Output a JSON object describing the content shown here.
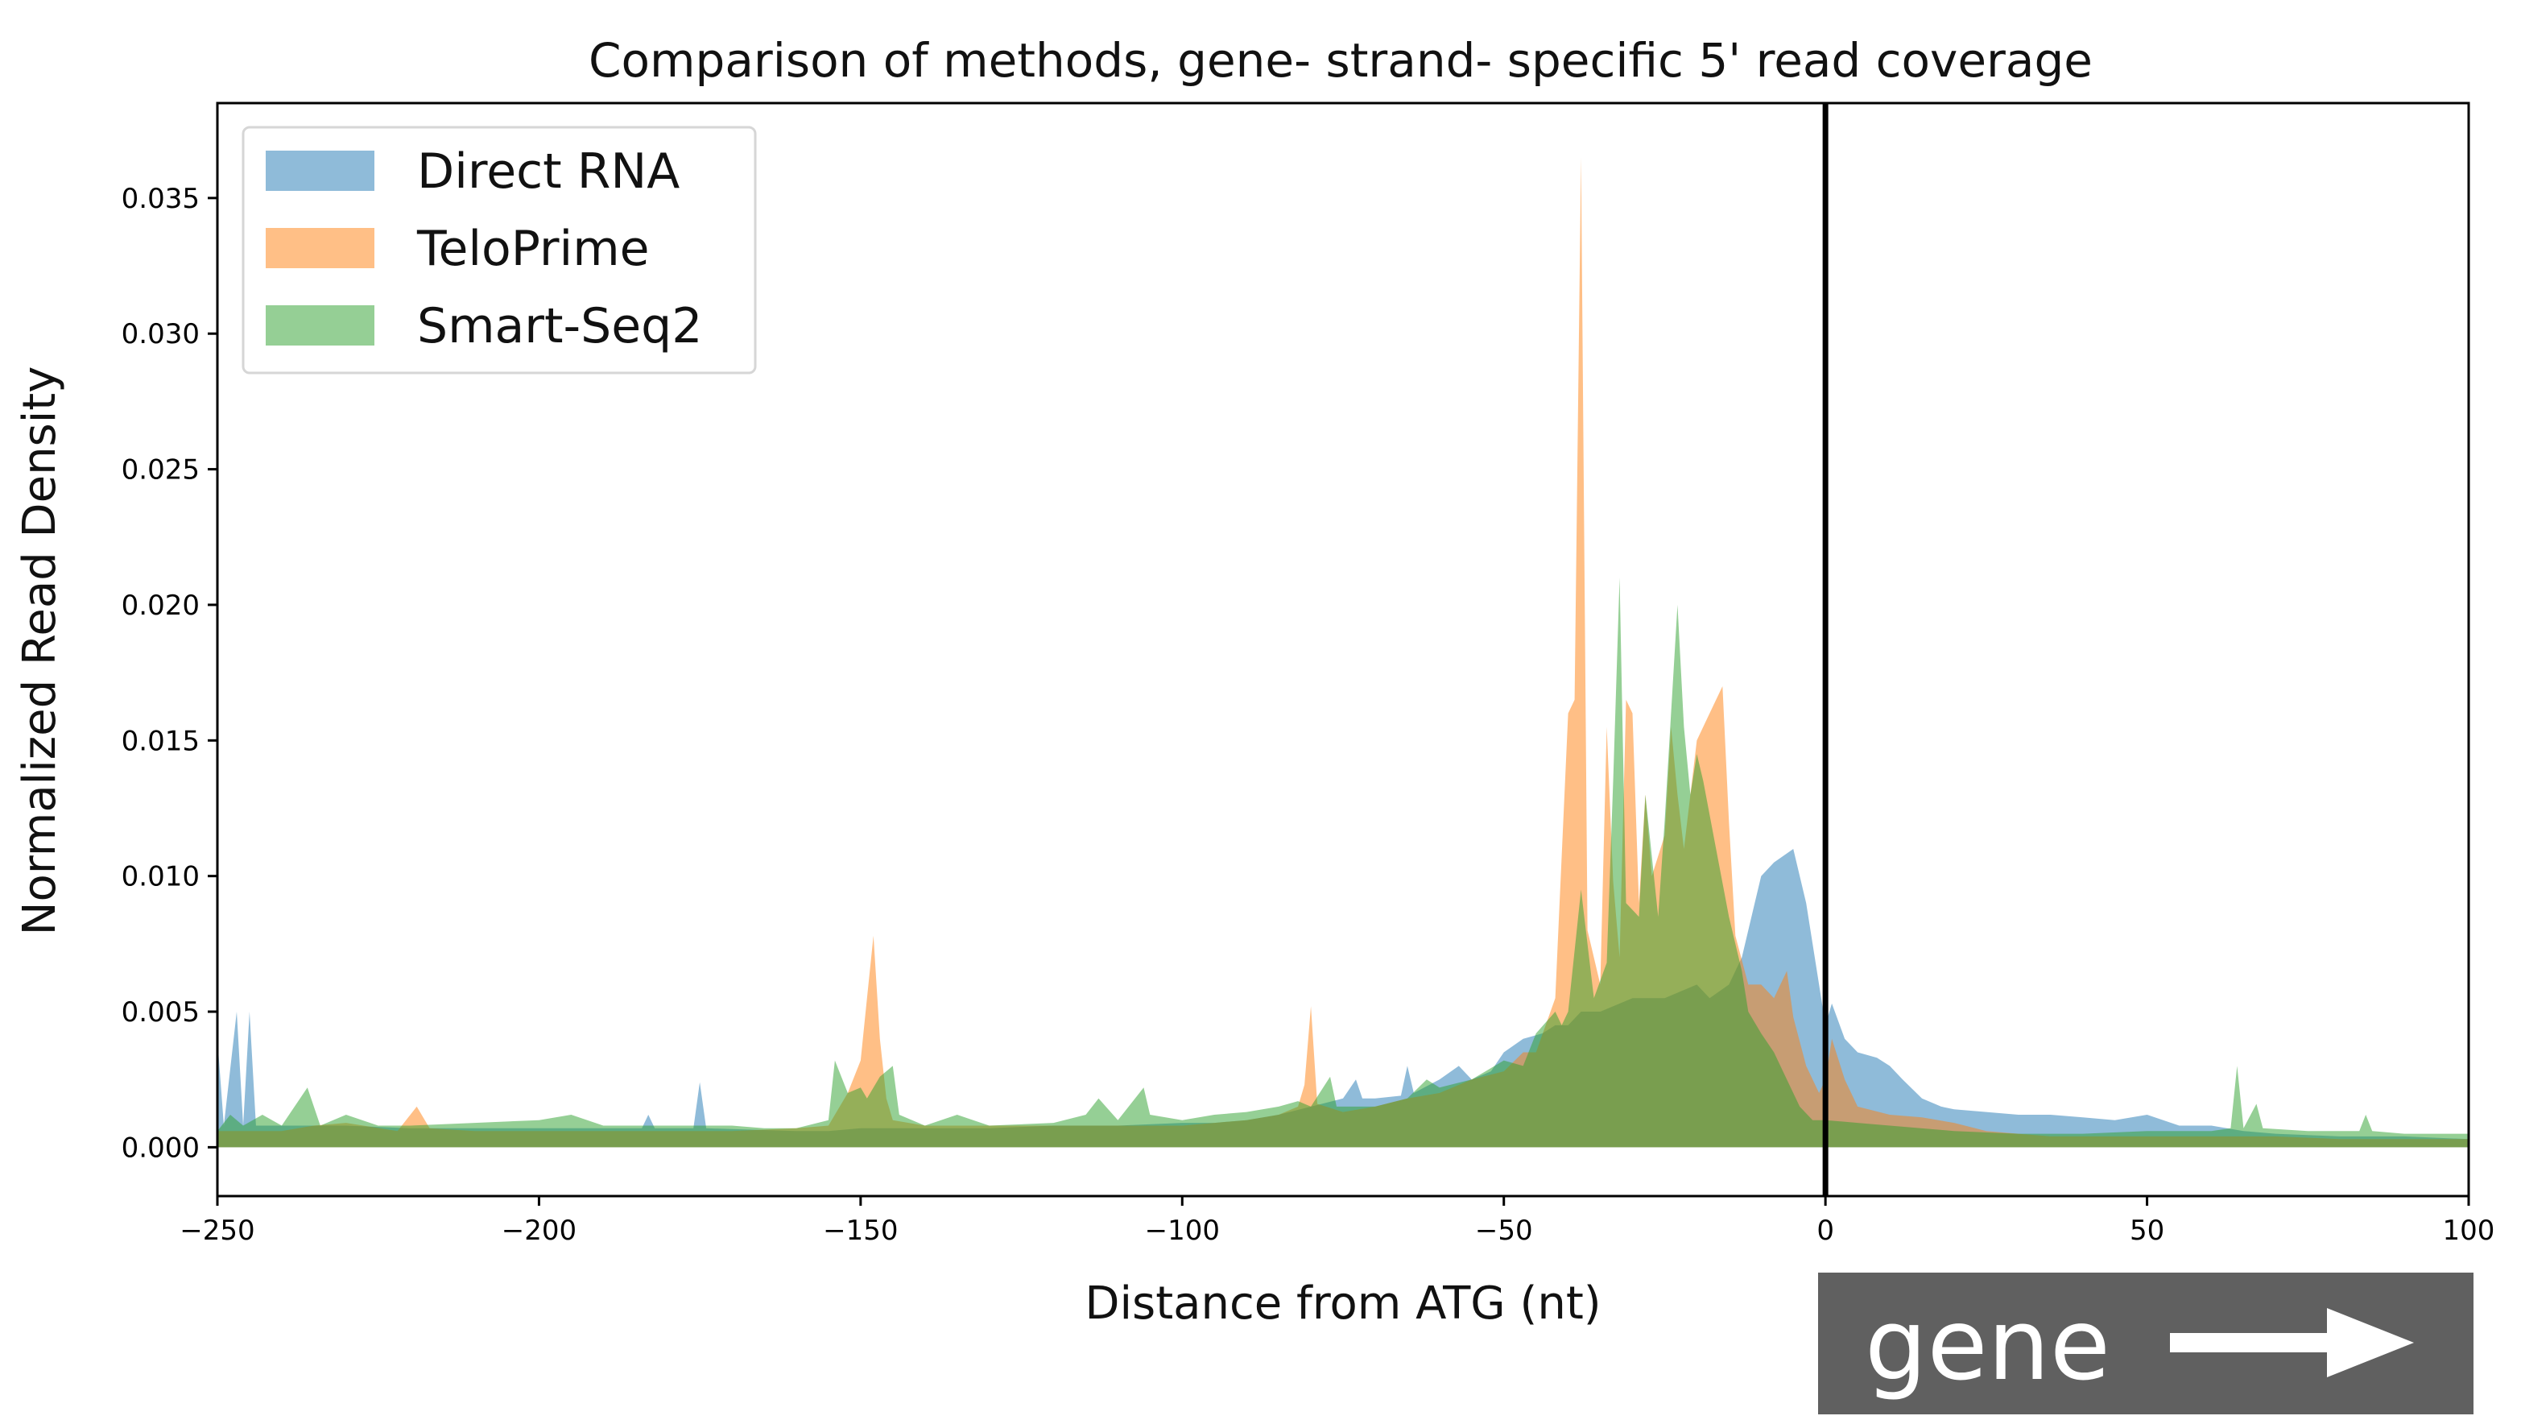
{
  "chart_data": {
    "type": "area",
    "title": "Comparison of methods, gene- strand- specific 5' read coverage",
    "xlabel": "Distance from ATG (nt)",
    "ylabel": "Normalized Read Density",
    "xlim": [
      -250,
      100
    ],
    "ylim": [
      -0.0018,
      0.0385
    ],
    "x_ticks": [
      -250,
      -200,
      -150,
      -100,
      -50,
      0,
      50,
      100
    ],
    "x_tick_labels": [
      "−250",
      "−200",
      "−150",
      "−100",
      "−50",
      "0",
      "50",
      "100"
    ],
    "y_ticks": [
      0.0,
      0.005,
      0.01,
      0.015,
      0.02,
      0.025,
      0.03,
      0.035
    ],
    "y_tick_labels": [
      "0.000",
      "0.005",
      "0.010",
      "0.015",
      "0.020",
      "0.025",
      "0.030",
      "0.035"
    ],
    "grid": false,
    "legend_position": "top-left",
    "vertical_line_x": 0,
    "series": [
      {
        "name": "Direct RNA",
        "color": "#1f77b4",
        "points": [
          [
            -250,
            0.004
          ],
          [
            -249,
            0.0008
          ],
          [
            -247,
            0.005
          ],
          [
            -246,
            0.0008
          ],
          [
            -245,
            0.005
          ],
          [
            -244,
            0.0008
          ],
          [
            -240,
            0.0008
          ],
          [
            -230,
            0.0008
          ],
          [
            -220,
            0.0007
          ],
          [
            -210,
            0.0007
          ],
          [
            -200,
            0.0007
          ],
          [
            -190,
            0.0007
          ],
          [
            -184,
            0.0007
          ],
          [
            -183,
            0.0012
          ],
          [
            -182,
            0.0007
          ],
          [
            -176,
            0.0007
          ],
          [
            -175,
            0.0024
          ],
          [
            -174,
            0.0007
          ],
          [
            -160,
            0.0006
          ],
          [
            -155,
            0.0006
          ],
          [
            -150,
            0.0007
          ],
          [
            -140,
            0.0007
          ],
          [
            -130,
            0.0007
          ],
          [
            -120,
            0.0008
          ],
          [
            -110,
            0.0008
          ],
          [
            -100,
            0.0009
          ],
          [
            -95,
            0.0009
          ],
          [
            -90,
            0.001
          ],
          [
            -85,
            0.0012
          ],
          [
            -80,
            0.0015
          ],
          [
            -75,
            0.0018
          ],
          [
            -73,
            0.0025
          ],
          [
            -72,
            0.0018
          ],
          [
            -70,
            0.0018
          ],
          [
            -66,
            0.0019
          ],
          [
            -65,
            0.003
          ],
          [
            -64,
            0.002
          ],
          [
            -60,
            0.0025
          ],
          [
            -57,
            0.003
          ],
          [
            -55,
            0.0025
          ],
          [
            -52,
            0.0028
          ],
          [
            -50,
            0.0035
          ],
          [
            -47,
            0.004
          ],
          [
            -44,
            0.0042
          ],
          [
            -42,
            0.0045
          ],
          [
            -40,
            0.0045
          ],
          [
            -38,
            0.005
          ],
          [
            -35,
            0.005
          ],
          [
            -30,
            0.0055
          ],
          [
            -25,
            0.0055
          ],
          [
            -20,
            0.006
          ],
          [
            -18,
            0.0055
          ],
          [
            -15,
            0.006
          ],
          [
            -13,
            0.007
          ],
          [
            -11,
            0.009
          ],
          [
            -10,
            0.01
          ],
          [
            -8,
            0.0105
          ],
          [
            -5,
            0.011
          ],
          [
            -3,
            0.009
          ],
          [
            -1,
            0.006
          ],
          [
            0,
            0.0045
          ],
          [
            1,
            0.0053
          ],
          [
            3,
            0.004
          ],
          [
            5,
            0.0035
          ],
          [
            8,
            0.0033
          ],
          [
            10,
            0.003
          ],
          [
            12,
            0.0025
          ],
          [
            15,
            0.0018
          ],
          [
            18,
            0.0015
          ],
          [
            20,
            0.0014
          ],
          [
            25,
            0.0013
          ],
          [
            30,
            0.0012
          ],
          [
            35,
            0.0012
          ],
          [
            40,
            0.0011
          ],
          [
            45,
            0.001
          ],
          [
            50,
            0.0012
          ],
          [
            55,
            0.0008
          ],
          [
            60,
            0.0008
          ],
          [
            65,
            0.0006
          ],
          [
            70,
            0.0005
          ],
          [
            80,
            0.0004
          ],
          [
            90,
            0.0004
          ],
          [
            100,
            0.0003
          ]
        ]
      },
      {
        "name": "TeloPrime",
        "color": "#ff7f0e",
        "points": [
          [
            -250,
            0.0006
          ],
          [
            -240,
            0.0006
          ],
          [
            -235,
            0.0008
          ],
          [
            -230,
            0.0009
          ],
          [
            -222,
            0.0006
          ],
          [
            -219,
            0.0015
          ],
          [
            -217,
            0.0007
          ],
          [
            -210,
            0.0006
          ],
          [
            -200,
            0.0006
          ],
          [
            -190,
            0.0006
          ],
          [
            -180,
            0.0006
          ],
          [
            -170,
            0.0006
          ],
          [
            -160,
            0.0007
          ],
          [
            -155,
            0.0008
          ],
          [
            -152,
            0.002
          ],
          [
            -150,
            0.0032
          ],
          [
            -149,
            0.0055
          ],
          [
            -148,
            0.0078
          ],
          [
            -147,
            0.004
          ],
          [
            -146,
            0.0018
          ],
          [
            -145,
            0.001
          ],
          [
            -140,
            0.0008
          ],
          [
            -130,
            0.0008
          ],
          [
            -120,
            0.0008
          ],
          [
            -110,
            0.0008
          ],
          [
            -100,
            0.0008
          ],
          [
            -95,
            0.0009
          ],
          [
            -90,
            0.001
          ],
          [
            -85,
            0.0012
          ],
          [
            -82,
            0.0015
          ],
          [
            -81,
            0.0023
          ],
          [
            -80,
            0.0052
          ],
          [
            -79,
            0.0016
          ],
          [
            -75,
            0.0013
          ],
          [
            -70,
            0.0015
          ],
          [
            -65,
            0.0018
          ],
          [
            -60,
            0.002
          ],
          [
            -55,
            0.0025
          ],
          [
            -50,
            0.0028
          ],
          [
            -47,
            0.0035
          ],
          [
            -45,
            0.0035
          ],
          [
            -42,
            0.0055
          ],
          [
            -40,
            0.016
          ],
          [
            -39,
            0.0165
          ],
          [
            -38,
            0.0365
          ],
          [
            -37,
            0.008
          ],
          [
            -35,
            0.006
          ],
          [
            -34,
            0.0155
          ],
          [
            -33,
            0.0098
          ],
          [
            -32,
            0.007
          ],
          [
            -31,
            0.0165
          ],
          [
            -30,
            0.016
          ],
          [
            -29,
            0.009
          ],
          [
            -28,
            0.013
          ],
          [
            -27,
            0.01
          ],
          [
            -25,
            0.0115
          ],
          [
            -24,
            0.0155
          ],
          [
            -23,
            0.013
          ],
          [
            -22,
            0.011
          ],
          [
            -20,
            0.015
          ],
          [
            -18,
            0.016
          ],
          [
            -16,
            0.017
          ],
          [
            -15,
            0.012
          ],
          [
            -14,
            0.0078
          ],
          [
            -12,
            0.006
          ],
          [
            -10,
            0.006
          ],
          [
            -8,
            0.0055
          ],
          [
            -6,
            0.0065
          ],
          [
            -5,
            0.0048
          ],
          [
            -3,
            0.003
          ],
          [
            -1,
            0.002
          ],
          [
            0,
            0.0025
          ],
          [
            1,
            0.004
          ],
          [
            3,
            0.0025
          ],
          [
            5,
            0.0015
          ],
          [
            10,
            0.0012
          ],
          [
            15,
            0.0011
          ],
          [
            20,
            0.0009
          ],
          [
            25,
            0.0006
          ],
          [
            30,
            0.0005
          ],
          [
            35,
            0.0004
          ],
          [
            40,
            0.0004
          ],
          [
            50,
            0.0004
          ],
          [
            60,
            0.0004
          ],
          [
            70,
            0.0004
          ],
          [
            80,
            0.0003
          ],
          [
            90,
            0.0003
          ],
          [
            100,
            0.0003
          ]
        ]
      },
      {
        "name": "Smart-Seq2",
        "color": "#2ca02c",
        "points": [
          [
            -250,
            0.0006
          ],
          [
            -248,
            0.0012
          ],
          [
            -246,
            0.0008
          ],
          [
            -243,
            0.0012
          ],
          [
            -240,
            0.0008
          ],
          [
            -236,
            0.0022
          ],
          [
            -234,
            0.0008
          ],
          [
            -230,
            0.0012
          ],
          [
            -225,
            0.0008
          ],
          [
            -220,
            0.0008
          ],
          [
            -210,
            0.0009
          ],
          [
            -200,
            0.001
          ],
          [
            -195,
            0.0012
          ],
          [
            -190,
            0.0008
          ],
          [
            -180,
            0.0008
          ],
          [
            -170,
            0.0008
          ],
          [
            -165,
            0.0007
          ],
          [
            -160,
            0.0007
          ],
          [
            -155,
            0.001
          ],
          [
            -154,
            0.0032
          ],
          [
            -152,
            0.002
          ],
          [
            -150,
            0.0022
          ],
          [
            -149,
            0.0018
          ],
          [
            -147,
            0.0026
          ],
          [
            -145,
            0.003
          ],
          [
            -144,
            0.0012
          ],
          [
            -140,
            0.0008
          ],
          [
            -135,
            0.0012
          ],
          [
            -130,
            0.0008
          ],
          [
            -120,
            0.0009
          ],
          [
            -115,
            0.0012
          ],
          [
            -113,
            0.0018
          ],
          [
            -110,
            0.001
          ],
          [
            -106,
            0.0022
          ],
          [
            -105,
            0.0012
          ],
          [
            -100,
            0.001
          ],
          [
            -95,
            0.0012
          ],
          [
            -90,
            0.0013
          ],
          [
            -85,
            0.0015
          ],
          [
            -82,
            0.0017
          ],
          [
            -80,
            0.0015
          ],
          [
            -77,
            0.0026
          ],
          [
            -76,
            0.0015
          ],
          [
            -70,
            0.0015
          ],
          [
            -65,
            0.0018
          ],
          [
            -62,
            0.0025
          ],
          [
            -60,
            0.0022
          ],
          [
            -55,
            0.0025
          ],
          [
            -50,
            0.0032
          ],
          [
            -47,
            0.003
          ],
          [
            -45,
            0.0042
          ],
          [
            -42,
            0.005
          ],
          [
            -41,
            0.0045
          ],
          [
            -40,
            0.005
          ],
          [
            -38,
            0.0095
          ],
          [
            -36,
            0.0055
          ],
          [
            -34,
            0.0068
          ],
          [
            -33,
            0.0135
          ],
          [
            -32,
            0.021
          ],
          [
            -31,
            0.009
          ],
          [
            -29,
            0.0085
          ],
          [
            -28,
            0.013
          ],
          [
            -26,
            0.0085
          ],
          [
            -25,
            0.012
          ],
          [
            -23,
            0.02
          ],
          [
            -22,
            0.0155
          ],
          [
            -21,
            0.013
          ],
          [
            -20,
            0.0145
          ],
          [
            -19,
            0.0135
          ],
          [
            -17,
            0.011
          ],
          [
            -15,
            0.0085
          ],
          [
            -13,
            0.0065
          ],
          [
            -12,
            0.005
          ],
          [
            -10,
            0.0042
          ],
          [
            -8,
            0.0035
          ],
          [
            -6,
            0.0025
          ],
          [
            -4,
            0.0015
          ],
          [
            -2,
            0.001
          ],
          [
            0,
            0.001
          ],
          [
            5,
            0.0009
          ],
          [
            10,
            0.0008
          ],
          [
            20,
            0.0006
          ],
          [
            30,
            0.0005
          ],
          [
            40,
            0.0005
          ],
          [
            50,
            0.0006
          ],
          [
            60,
            0.0006
          ],
          [
            63,
            0.0007
          ],
          [
            64,
            0.003
          ],
          [
            65,
            0.0007
          ],
          [
            67,
            0.0016
          ],
          [
            68,
            0.0007
          ],
          [
            75,
            0.0006
          ],
          [
            83,
            0.0006
          ],
          [
            84,
            0.0012
          ],
          [
            85,
            0.0006
          ],
          [
            90,
            0.0005
          ],
          [
            100,
            0.0005
          ]
        ]
      }
    ]
  },
  "annotation": {
    "gene_label": "gene",
    "box_color": "#606060",
    "text_color": "#ffffff"
  }
}
